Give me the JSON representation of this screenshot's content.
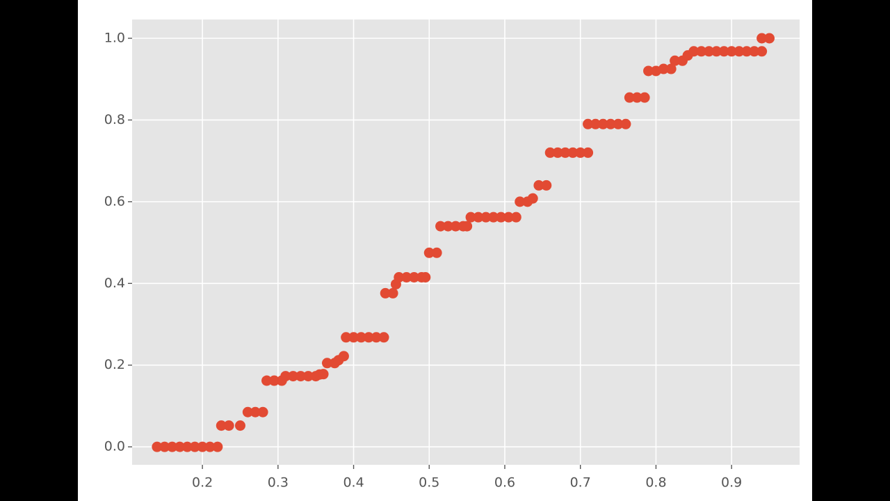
{
  "chart_data": {
    "type": "scatter",
    "color": "#e24a33",
    "grid": true,
    "xlim": [
      0.107,
      0.99
    ],
    "ylim": [
      -0.044,
      1.046
    ],
    "xticks": [
      {
        "value": 0.2,
        "label": "0.2"
      },
      {
        "value": 0.3,
        "label": "0.3"
      },
      {
        "value": 0.4,
        "label": "0.4"
      },
      {
        "value": 0.5,
        "label": "0.5"
      },
      {
        "value": 0.6,
        "label": "0.6"
      },
      {
        "value": 0.7,
        "label": "0.7"
      },
      {
        "value": 0.8,
        "label": "0.8"
      },
      {
        "value": 0.9,
        "label": "0.9"
      }
    ],
    "yticks": [
      {
        "value": 0,
        "label": "0.0"
      },
      {
        "value": 0.2,
        "label": "0.2"
      },
      {
        "value": 0.4,
        "label": "0.4"
      },
      {
        "value": 0.6,
        "label": "0.6"
      },
      {
        "value": 0.8,
        "label": "0.8"
      },
      {
        "value": 1,
        "label": "1.0"
      }
    ],
    "x": [
      0.14,
      0.15,
      0.16,
      0.17,
      0.18,
      0.19,
      0.2,
      0.21,
      0.22,
      0.225,
      0.235,
      0.25,
      0.26,
      0.27,
      0.28,
      0.285,
      0.295,
      0.305,
      0.31,
      0.32,
      0.33,
      0.34,
      0.35,
      0.355,
      0.36,
      0.365,
      0.375,
      0.38,
      0.387,
      0.39,
      0.4,
      0.41,
      0.42,
      0.43,
      0.44,
      0.442,
      0.452,
      0.456,
      0.46,
      0.47,
      0.48,
      0.49,
      0.495,
      0.5,
      0.51,
      0.515,
      0.525,
      0.535,
      0.545,
      0.55,
      0.555,
      0.565,
      0.575,
      0.585,
      0.595,
      0.605,
      0.615,
      0.62,
      0.63,
      0.637,
      0.645,
      0.655,
      0.66,
      0.67,
      0.68,
      0.69,
      0.7,
      0.71,
      0.71,
      0.72,
      0.73,
      0.74,
      0.75,
      0.76,
      0.765,
      0.775,
      0.785,
      0.79,
      0.8,
      0.81,
      0.82,
      0.825,
      0.835,
      0.842,
      0.85,
      0.86,
      0.87,
      0.88,
      0.89,
      0.9,
      0.91,
      0.92,
      0.93,
      0.94,
      0.94,
      0.95
    ],
    "y": [
      0,
      0,
      0,
      0,
      0,
      0,
      0,
      0,
      0,
      0.052,
      0.052,
      0.052,
      0.085,
      0.085,
      0.085,
      0.162,
      0.162,
      0.162,
      0.173,
      0.173,
      0.173,
      0.173,
      0.173,
      0.177,
      0.178,
      0.205,
      0.205,
      0.212,
      0.222,
      0.268,
      0.268,
      0.268,
      0.268,
      0.268,
      0.268,
      0.376,
      0.376,
      0.398,
      0.415,
      0.415,
      0.415,
      0.415,
      0.415,
      0.475,
      0.475,
      0.54,
      0.54,
      0.54,
      0.54,
      0.54,
      0.562,
      0.562,
      0.562,
      0.562,
      0.562,
      0.562,
      0.562,
      0.6,
      0.6,
      0.608,
      0.64,
      0.64,
      0.72,
      0.72,
      0.72,
      0.72,
      0.72,
      0.72,
      0.79,
      0.79,
      0.79,
      0.79,
      0.79,
      0.79,
      0.855,
      0.855,
      0.855,
      0.92,
      0.92,
      0.925,
      0.925,
      0.945,
      0.945,
      0.958,
      0.968,
      0.968,
      0.968,
      0.968,
      0.968,
      0.968,
      0.968,
      0.968,
      0.968,
      0.968,
      1,
      1
    ]
  }
}
